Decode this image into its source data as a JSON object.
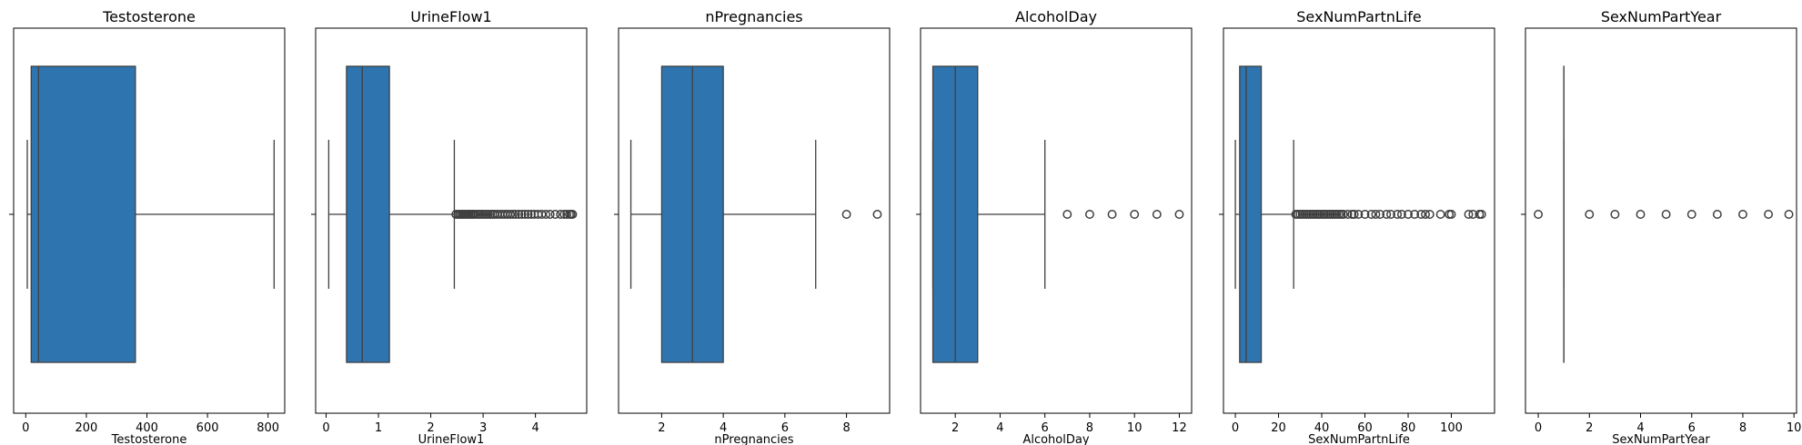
{
  "chart_data": [
    {
      "type": "box",
      "title": "Testosterone",
      "xlabel": "Testosterone",
      "xlim": [
        -40,
        855
      ],
      "xticks": [
        0,
        200,
        400,
        600,
        800
      ],
      "box": {
        "whisker_low": 5,
        "q1": 18,
        "median": 42,
        "q3": 362,
        "whisker_high": 820
      },
      "outliers": []
    },
    {
      "type": "box",
      "title": "UrineFlow1",
      "xlabel": "UrineFlow1",
      "xlim": [
        -0.2,
        4.98
      ],
      "xticks": [
        0,
        1,
        2,
        3,
        4
      ],
      "box": {
        "whisker_low": 0.05,
        "q1": 0.39,
        "median": 0.69,
        "q3": 1.21,
        "whisker_high": 2.45
      },
      "outliers": [
        2.48,
        2.52,
        2.55,
        2.58,
        2.61,
        2.64,
        2.67,
        2.7,
        2.73,
        2.76,
        2.79,
        2.82,
        2.86,
        2.9,
        2.94,
        2.98,
        3.02,
        3.06,
        3.1,
        3.14,
        3.18,
        3.22,
        3.27,
        3.32,
        3.37,
        3.42,
        3.47,
        3.52,
        3.57,
        3.62,
        3.68,
        3.74,
        3.8,
        3.86,
        3.92,
        3.98,
        4.05,
        4.12,
        4.2,
        4.28,
        4.38,
        4.48,
        4.55,
        4.6,
        4.65,
        4.68,
        4.71
      ]
    },
    {
      "type": "box",
      "title": "nPregnancies",
      "xlabel": "nPregnancies",
      "xlim": [
        0.6,
        9.4
      ],
      "xticks": [
        2,
        4,
        6,
        8
      ],
      "box": {
        "whisker_low": 1,
        "q1": 2,
        "median": 3,
        "q3": 4,
        "whisker_high": 7
      },
      "outliers": [
        8,
        9
      ]
    },
    {
      "type": "box",
      "title": "AlcoholDay",
      "xlabel": "AlcoholDay",
      "xlim": [
        0.45,
        12.55
      ],
      "xticks": [
        2,
        4,
        6,
        8,
        10,
        12
      ],
      "box": {
        "whisker_low": 1,
        "q1": 1,
        "median": 2,
        "q3": 3,
        "whisker_high": 6
      },
      "outliers": [
        7,
        8,
        9,
        10,
        11,
        12
      ]
    },
    {
      "type": "box",
      "title": "SexNumPartnLife",
      "xlabel": "SexNumPartnLife",
      "xlim": [
        -5.5,
        120
      ],
      "xticks": [
        0,
        20,
        40,
        60,
        80,
        100
      ],
      "box": {
        "whisker_low": 0,
        "q1": 2,
        "median": 5,
        "q3": 12,
        "whisker_high": 27
      },
      "outliers": [
        28,
        29,
        30,
        31,
        32,
        33,
        34,
        35,
        36,
        37,
        38,
        39,
        40,
        41,
        42,
        43,
        44,
        45,
        46,
        47,
        48,
        49,
        50,
        52,
        54,
        55,
        57,
        60,
        63,
        65,
        67,
        70,
        72,
        75,
        77,
        80,
        83,
        86,
        88,
        90,
        95,
        99,
        100,
        108,
        110,
        113,
        114
      ]
    },
    {
      "type": "box",
      "title": "SexNumPartYear",
      "xlabel": "SexNumPartYear",
      "xlim": [
        -0.5,
        10.1
      ],
      "xticks": [
        0,
        2,
        4,
        6,
        8,
        10
      ],
      "box": {
        "whisker_low": 1,
        "q1": 1,
        "median": 1,
        "q3": 1,
        "whisker_high": 1
      },
      "outliers": [
        0,
        2,
        3,
        4,
        5,
        6,
        7,
        8,
        9,
        9.8
      ]
    }
  ],
  "colors": {
    "box_fill": "#2e75b0",
    "line": "#3f3f3f",
    "axis": "#000000",
    "background": "#ffffff"
  }
}
